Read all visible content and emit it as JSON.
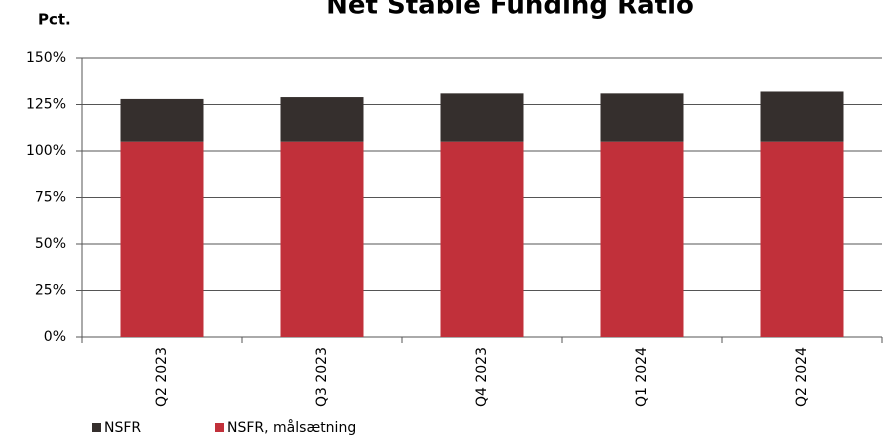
{
  "chart_data": {
    "type": "stacked_bar",
    "title": "Net Stable Funding Ratio",
    "y_label": "Pct.",
    "categories": [
      "Q2 2023",
      "Q3 2023",
      "Q4 2023",
      "Q1 2024",
      "Q2 2024"
    ],
    "series": [
      {
        "name": "NSFR",
        "color": "#352f2d",
        "values": [
          23,
          24,
          26,
          26,
          27
        ]
      },
      {
        "name": "NSFR, målsætning",
        "color": "#c1303a",
        "values": [
          105,
          105,
          105,
          105,
          105
        ]
      }
    ],
    "ylim": [
      0,
      150
    ],
    "yticks": [
      {
        "value": 0,
        "label": "0%"
      },
      {
        "value": 25,
        "label": "25%"
      },
      {
        "value": 50,
        "label": "50%"
      },
      {
        "value": 75,
        "label": "75%"
      },
      {
        "value": 100,
        "label": "100%"
      },
      {
        "value": 125,
        "label": "125%"
      },
      {
        "value": 150,
        "label": "150%"
      }
    ],
    "grid": true,
    "legend": "bottom-left"
  }
}
